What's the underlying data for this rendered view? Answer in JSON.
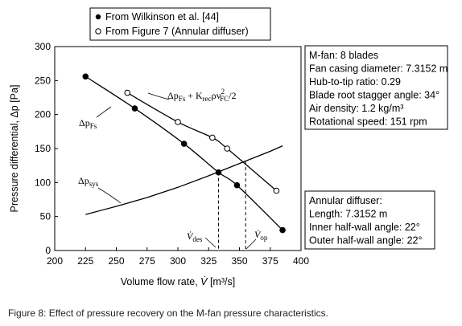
{
  "caption": "Figure 8:   Effect of pressure recovery on the M-fan pressure characteristics.",
  "chart_data": {
    "type": "line",
    "xlabel_parts": {
      "text": "Volume flow rate, ",
      "sym": "V̇",
      "unit": " [m³/s]"
    },
    "ylabel": "Pressure differential, Δp [Pa]",
    "xlim": [
      200,
      400
    ],
    "ylim": [
      0,
      300
    ],
    "x_ticks": [
      200,
      225,
      250,
      275,
      300,
      325,
      350,
      375,
      400
    ],
    "y_ticks": [
      0,
      50,
      100,
      150,
      200,
      250,
      300
    ],
    "grid": false,
    "legend": {
      "placement": "top-left",
      "entries": [
        {
          "label": "From Wilkinson et al. [44]",
          "marker": "filled-circle"
        },
        {
          "label": "From Figure 7 (Annular diffuser)",
          "marker": "open-circle"
        }
      ]
    },
    "series": [
      {
        "name": "Δp_Fs",
        "marker": "filled-circle",
        "x": [
          225,
          265,
          305,
          333,
          348,
          385
        ],
        "y": [
          256,
          209,
          157,
          115,
          96,
          30
        ]
      },
      {
        "name": "Δp_Fs + K_rec ρ v²_FC / 2",
        "marker": "open-circle",
        "x": [
          259,
          300,
          328,
          340,
          380
        ],
        "y": [
          232,
          189,
          166,
          150,
          88
        ]
      },
      {
        "name": "Δp_sys",
        "marker": "none",
        "x": [
          225,
          250,
          275,
          300,
          325,
          350,
          375,
          385
        ],
        "y": [
          53,
          65,
          78,
          93,
          110,
          128,
          146,
          154
        ]
      }
    ],
    "markers": {
      "design_point": {
        "x": 333,
        "y": 115,
        "label_sym": "V̇",
        "label_sub": "des"
      },
      "operating_point": {
        "x": 355,
        "y": 131,
        "label_sym": "V̇",
        "label_sub": "op"
      }
    },
    "annotations": {
      "fs": {
        "main": "Δp",
        "sub": "Fs"
      },
      "fs_rec": {
        "p1": "Δp",
        "s1": "Fs",
        "p2": " + K",
        "s2": "rec",
        "p3": "ρv",
        "s3": "FC",
        "sup": "2",
        "p4": "/2"
      },
      "sys": {
        "main": "Δp",
        "sub": "sys"
      }
    }
  },
  "info_box_1": {
    "lines": [
      "M-fan: 8 blades",
      "Fan casing diameter: 7.3152 m",
      "Hub-to-tip ratio: 0.29",
      "Blade root stagger angle: 34°",
      "Air density: 1.2 kg/m³",
      "Rotational speed: 151 rpm"
    ]
  },
  "info_box_2": {
    "lines": [
      "Annular diffuser:",
      "Length: 7.3152 m",
      "Inner half-wall angle: 22°",
      "Outer half-wall angle: 22°"
    ]
  }
}
